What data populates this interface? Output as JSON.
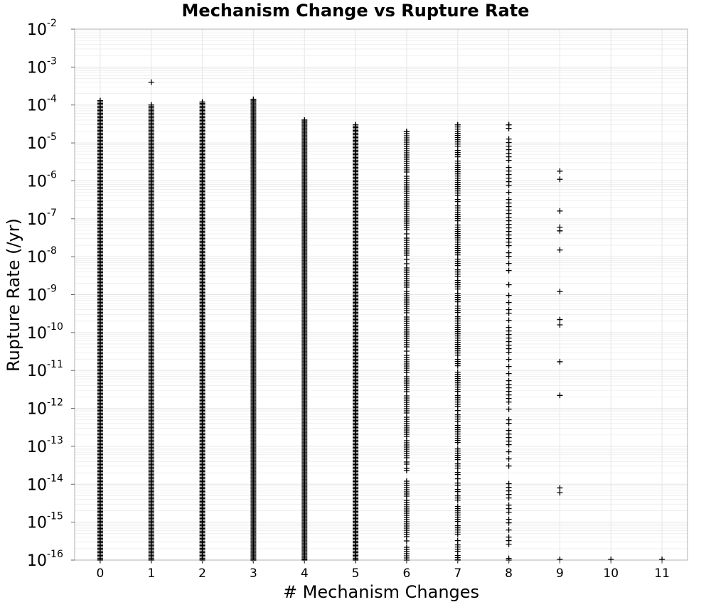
{
  "chart_data": {
    "type": "scatter",
    "title": "Mechanism Change vs Rupture Rate",
    "xlabel": "# Mechanism Changes",
    "ylabel": "Rupture Rate (/yr)",
    "x_ticks": [
      "0",
      "1",
      "2",
      "3",
      "4",
      "5",
      "6",
      "7",
      "8",
      "9",
      "10",
      "11"
    ],
    "y_tick_base": "10",
    "y_tick_exponents": [
      "-16",
      "-15",
      "-14",
      "-13",
      "-12",
      "-11",
      "-10",
      "-9",
      "-8",
      "-7",
      "-6",
      "-5",
      "-4",
      "-3",
      "-2"
    ],
    "xlim": [
      -0.5,
      11.5
    ],
    "ylim": [
      1e-16,
      0.01
    ],
    "y_scale": "log",
    "grid": true,
    "marker": "+",
    "marker_color": "#000000",
    "grid_color": "#e6e6e6",
    "columns": [
      {
        "x": 0,
        "y_range": [
          1e-16,
          0.00013
        ],
        "density": "continuous"
      },
      {
        "x": 1,
        "y_range": [
          1e-16,
          0.0001
        ],
        "density": "continuous"
      },
      {
        "x": 2,
        "y_range": [
          1e-16,
          0.00012
        ],
        "density": "continuous"
      },
      {
        "x": 3,
        "y_range": [
          1e-16,
          0.00014
        ],
        "density": "continuous"
      },
      {
        "x": 4,
        "y_range": [
          1e-16,
          4e-05
        ],
        "density": "continuous"
      },
      {
        "x": 5,
        "y_range": [
          1e-16,
          3e-05
        ],
        "density": "continuous"
      },
      {
        "x": 6,
        "y_range": [
          1e-16,
          2e-05
        ],
        "density": "dense"
      },
      {
        "x": 7,
        "y_range": [
          1e-16,
          3e-05
        ],
        "density": "dense"
      },
      {
        "x": 8,
        "y_range": [
          1e-16,
          3e-05
        ],
        "density": "sparse"
      }
    ],
    "points": [
      {
        "x": 1,
        "y": 0.0004
      },
      {
        "x": 9,
        "y": 1.8e-06
      },
      {
        "x": 9,
        "y": 1.1e-06
      },
      {
        "x": 9,
        "y": 1.6e-07
      },
      {
        "x": 9,
        "y": 6e-08
      },
      {
        "x": 9,
        "y": 4.8e-08
      },
      {
        "x": 9,
        "y": 1.5e-08
      },
      {
        "x": 9,
        "y": 1.2e-09
      },
      {
        "x": 9,
        "y": 2.2e-10
      },
      {
        "x": 9,
        "y": 1.6e-10
      },
      {
        "x": 9,
        "y": 1.7e-11
      },
      {
        "x": 9,
        "y": 2.2e-12
      },
      {
        "x": 9,
        "y": 8e-15
      },
      {
        "x": 9,
        "y": 6e-15
      },
      {
        "x": 9,
        "y": 1e-16
      },
      {
        "x": 10,
        "y": 1e-16
      },
      {
        "x": 11,
        "y": 1e-16
      }
    ]
  }
}
